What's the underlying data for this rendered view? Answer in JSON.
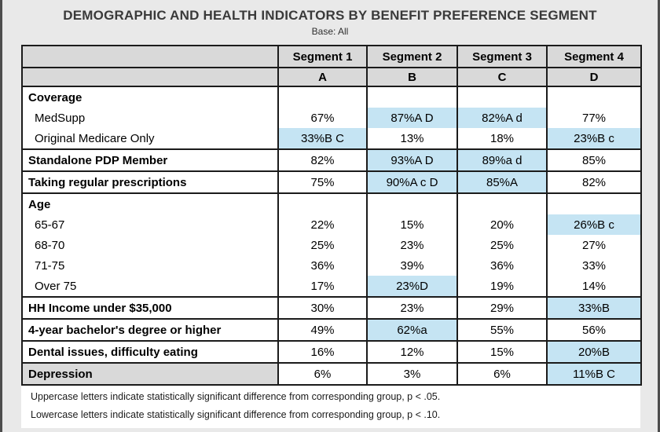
{
  "title": "DEMOGRAPHIC AND HEALTH INDICATORS BY BENEFIT PREFERENCE SEGMENT",
  "subtitle": "Base: All",
  "colors": {
    "highlight": "#c5e4f3",
    "header_bg": "#d9d9d9",
    "page_bg": "#e9e9e9",
    "border": "#1b1b1b"
  },
  "table": {
    "columns": [
      {
        "segment": "Segment 1",
        "letter": "A"
      },
      {
        "segment": "Segment 2",
        "letter": "B"
      },
      {
        "segment": "Segment 3",
        "letter": "C"
      },
      {
        "segment": "Segment 4",
        "letter": "D"
      }
    ],
    "rows": [
      {
        "label": "Coverage",
        "style": "section",
        "group_start": true,
        "values": [
          {
            "text": ""
          },
          {
            "text": ""
          },
          {
            "text": ""
          },
          {
            "text": ""
          }
        ]
      },
      {
        "label": "MedSupp",
        "style": "sub",
        "group_start": false,
        "values": [
          {
            "text": "67%"
          },
          {
            "text": "87%A D",
            "hl": true
          },
          {
            "text": "82%A d",
            "hl": true
          },
          {
            "text": "77%"
          }
        ]
      },
      {
        "label": "Original Medicare Only",
        "style": "sub",
        "group_start": false,
        "values": [
          {
            "text": "33%B C",
            "hl": true
          },
          {
            "text": "13%"
          },
          {
            "text": "18%"
          },
          {
            "text": "23%B c",
            "hl": true
          }
        ]
      },
      {
        "label": "Standalone PDP Member",
        "style": "bold",
        "group_start": true,
        "values": [
          {
            "text": "82%"
          },
          {
            "text": "93%A D",
            "hl": true
          },
          {
            "text": "89%a d",
            "hl": true
          },
          {
            "text": "85%"
          }
        ]
      },
      {
        "label": "Taking regular prescriptions",
        "style": "bold",
        "group_start": true,
        "values": [
          {
            "text": "75%"
          },
          {
            "text": "90%A c D",
            "hl": true
          },
          {
            "text": "85%A",
            "hl": true
          },
          {
            "text": "82%"
          }
        ]
      },
      {
        "label": "Age",
        "style": "section",
        "group_start": true,
        "values": [
          {
            "text": ""
          },
          {
            "text": ""
          },
          {
            "text": ""
          },
          {
            "text": ""
          }
        ]
      },
      {
        "label": "65-67",
        "style": "sub",
        "group_start": false,
        "values": [
          {
            "text": "22%"
          },
          {
            "text": "15%"
          },
          {
            "text": "20%"
          },
          {
            "text": "26%B c",
            "hl": true
          }
        ]
      },
      {
        "label": "68-70",
        "style": "sub",
        "group_start": false,
        "values": [
          {
            "text": "25%"
          },
          {
            "text": "23%"
          },
          {
            "text": "25%"
          },
          {
            "text": "27%"
          }
        ]
      },
      {
        "label": "71-75",
        "style": "sub",
        "group_start": false,
        "values": [
          {
            "text": "36%"
          },
          {
            "text": "39%"
          },
          {
            "text": "36%"
          },
          {
            "text": "33%"
          }
        ]
      },
      {
        "label": "Over 75",
        "style": "sub",
        "group_start": false,
        "values": [
          {
            "text": "17%"
          },
          {
            "text": "23%D",
            "hl": true
          },
          {
            "text": "19%"
          },
          {
            "text": "14%"
          }
        ]
      },
      {
        "label": "HH Income under $35,000",
        "style": "bold",
        "group_start": true,
        "values": [
          {
            "text": "30%"
          },
          {
            "text": "23%"
          },
          {
            "text": "29%"
          },
          {
            "text": "33%B",
            "hl": true
          }
        ]
      },
      {
        "label": "4-year bachelor's degree or higher",
        "style": "bold",
        "group_start": true,
        "values": [
          {
            "text": "49%"
          },
          {
            "text": "62%a",
            "hl": true
          },
          {
            "text": "55%"
          },
          {
            "text": "56%"
          }
        ]
      },
      {
        "label": "Dental issues, difficulty eating",
        "style": "bold",
        "group_start": true,
        "values": [
          {
            "text": "16%"
          },
          {
            "text": "12%"
          },
          {
            "text": "15%"
          },
          {
            "text": "20%B",
            "hl": true
          }
        ]
      },
      {
        "label": "Depression",
        "style": "bold",
        "group_start": true,
        "label_shaded": true,
        "values": [
          {
            "text": "6%"
          },
          {
            "text": "3%"
          },
          {
            "text": "6%"
          },
          {
            "text": "11%B C",
            "hl": true
          }
        ]
      }
    ]
  },
  "footnotes": [
    "Uppercase letters indicate statistically significant difference from corresponding group, p < .05.",
    "Lowercase letters indicate statistically significant difference from corresponding group, p < .10."
  ]
}
